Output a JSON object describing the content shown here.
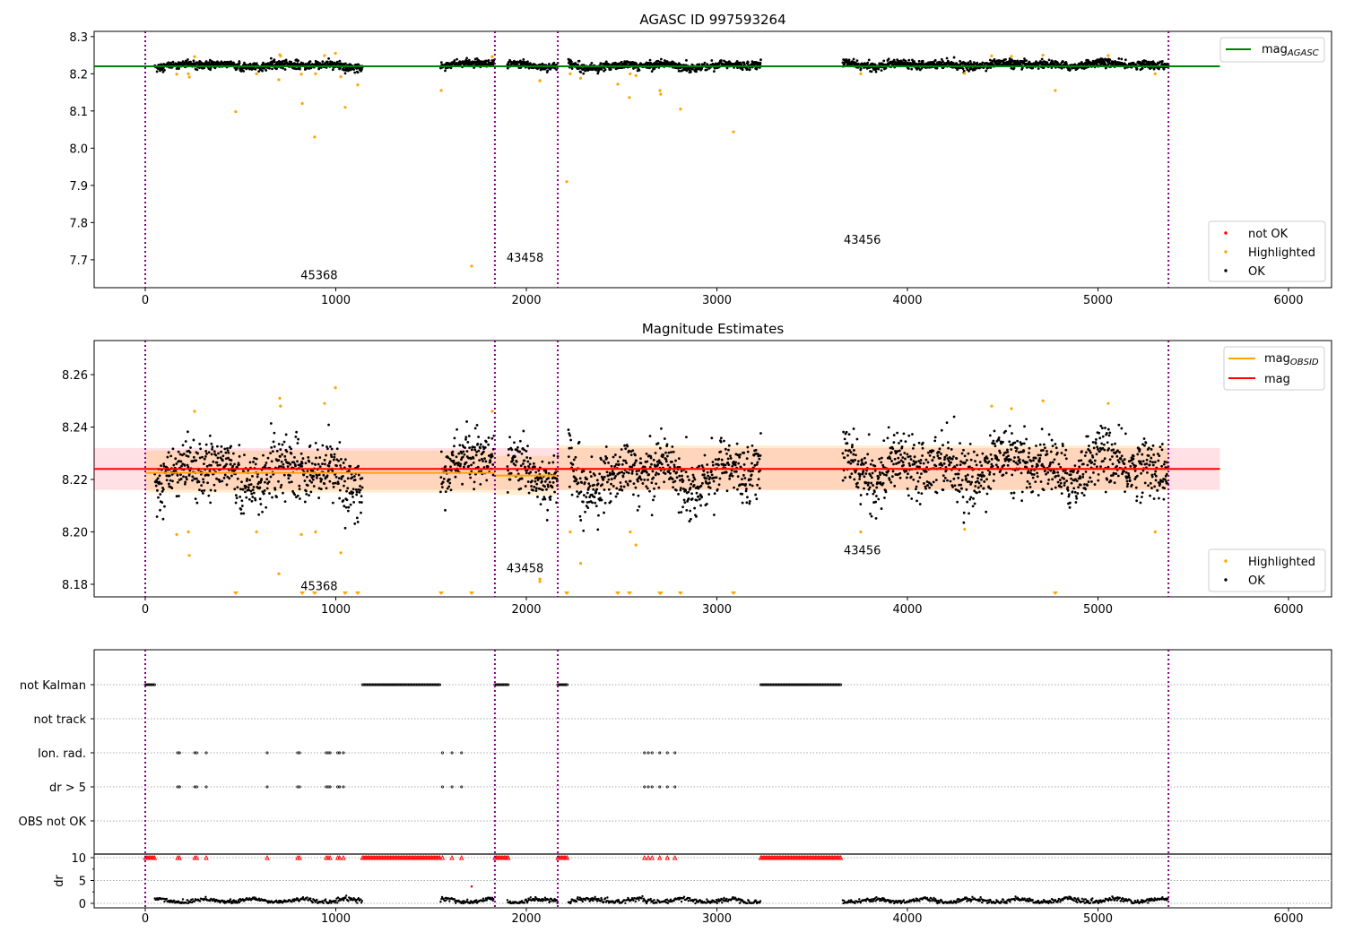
{
  "chart_data": [
    {
      "type": "scatter",
      "title": "AGASC ID 997593264",
      "xlim": [
        -268,
        6226
      ],
      "ylim": [
        7.625,
        8.314
      ],
      "xticks": [
        0,
        1000,
        2000,
        3000,
        4000,
        5000,
        6000
      ],
      "yticks": [
        7.7,
        7.8,
        7.9,
        8.0,
        8.1,
        8.2,
        8.3
      ],
      "mag_agasc": 8.22,
      "mag_agasc_xrange": [
        -268,
        5640
      ],
      "legend": {
        "top": "mag_AGASC",
        "bottom": [
          "not OK",
          "Highlighted",
          "OK"
        ]
      },
      "annotations": [
        {
          "text": "45368",
          "x": 815,
          "y": 7.66
        },
        {
          "text": "43458",
          "x": 1896,
          "y": 7.707
        },
        {
          "text": "43456",
          "x": 3666,
          "y": 7.755
        }
      ]
    },
    {
      "type": "scatter",
      "title": "Magnitude Estimates",
      "xlim": [
        -268,
        6226
      ],
      "ylim": [
        8.1752,
        8.273
      ],
      "xticks": [
        0,
        1000,
        2000,
        3000,
        4000,
        5000,
        6000
      ],
      "yticks": [
        8.18,
        8.2,
        8.22,
        8.24,
        8.26
      ],
      "mag": 8.224,
      "mag_band": [
        8.216,
        8.232
      ],
      "mag_xrange": [
        -268,
        5640
      ],
      "mag_obsid": [
        {
          "x": [
            0,
            1835
          ],
          "mag": 8.2225,
          "band": [
            8.215,
            8.231
          ]
        },
        {
          "x": [
            1835,
            2165
          ],
          "mag": 8.2215,
          "band": [
            8.214,
            8.229
          ]
        },
        {
          "x": [
            2165,
            5370
          ],
          "mag": 8.224,
          "band": [
            8.216,
            8.233
          ]
        }
      ],
      "legend": {
        "top": [
          "mag_OBSID",
          "mag"
        ],
        "bottom": [
          "Highlighted",
          "OK"
        ]
      },
      "annotations": [
        {
          "text": "45368",
          "x": 815,
          "y": 8.1795
        },
        {
          "text": "43458",
          "x": 1896,
          "y": 8.1863
        },
        {
          "text": "43456",
          "x": 3666,
          "y": 8.1932
        }
      ]
    },
    {
      "type": "scatter",
      "categories": [
        "not Kalman",
        "not track",
        "Ion. rad.",
        "dr > 5",
        "OBS not OK"
      ],
      "ylabel_dr": "dr",
      "dr_ticks": [
        0,
        5,
        10
      ],
      "xticks": [
        0,
        1000,
        2000,
        3000,
        4000,
        5000,
        6000
      ]
    }
  ],
  "obsid_boundaries": [
    0,
    1835,
    2165,
    5370
  ],
  "ok_segments": [
    {
      "x": [
        50,
        1140
      ],
      "mean": 8.2225,
      "wobble": 0.006,
      "noise": 0.0055
    },
    {
      "x": [
        1550,
        1830
      ],
      "mean": 8.226,
      "wobble": 0.005,
      "noise": 0.005
    },
    {
      "x": [
        1900,
        2165
      ],
      "mean": 8.221,
      "wobble": 0.006,
      "noise": 0.005
    },
    {
      "x": [
        2220,
        3230
      ],
      "mean": 8.222,
      "wobble": 0.007,
      "noise": 0.0055
    },
    {
      "x": [
        3660,
        5370
      ],
      "mean": 8.225,
      "wobble": 0.006,
      "noise": 0.0055
    }
  ],
  "not_kalman_ranges": [
    [
      0,
      50
    ],
    [
      1140,
      1550
    ],
    [
      1835,
      1910
    ],
    [
      2165,
      2220
    ],
    [
      3230,
      3650
    ]
  ],
  "ion_rad_x": [
    170,
    180,
    260,
    270,
    320,
    640,
    800,
    810,
    950,
    960,
    970,
    1010,
    1020,
    1040,
    1560,
    1610,
    1660,
    2620,
    2640,
    2660,
    2700,
    2740,
    2780
  ],
  "dr_outlier": {
    "x": 1713,
    "dr": 3.7
  },
  "highlighted": [
    {
      "x": 475,
      "y": 8.098
    },
    {
      "x": 824,
      "y": 8.12
    },
    {
      "x": 889,
      "y": 8.03
    },
    {
      "x": 1049,
      "y": 8.11
    },
    {
      "x": 1115,
      "y": 8.17
    },
    {
      "x": 1553,
      "y": 8.155
    },
    {
      "x": 1713,
      "y": 7.683
    },
    {
      "x": 2071,
      "y": 8.182
    },
    {
      "x": 2212,
      "y": 7.91
    },
    {
      "x": 2480,
      "y": 8.172
    },
    {
      "x": 2541,
      "y": 8.136
    },
    {
      "x": 2701,
      "y": 8.155
    },
    {
      "x": 2705,
      "y": 8.145
    },
    {
      "x": 2809,
      "y": 8.105
    },
    {
      "x": 3087,
      "y": 8.044
    },
    {
      "x": 4776,
      "y": 8.155
    },
    {
      "x": 165,
      "y": 8.199
    },
    {
      "x": 226,
      "y": 8.2
    },
    {
      "x": 231,
      "y": 8.191
    },
    {
      "x": 584,
      "y": 8.2
    },
    {
      "x": 701,
      "y": 8.184
    },
    {
      "x": 819,
      "y": 8.199
    },
    {
      "x": 894,
      "y": 8.2
    },
    {
      "x": 1026,
      "y": 8.192
    },
    {
      "x": 2071,
      "y": 8.181
    },
    {
      "x": 2230,
      "y": 8.2
    },
    {
      "x": 2285,
      "y": 8.188
    },
    {
      "x": 2545,
      "y": 8.2
    },
    {
      "x": 2575,
      "y": 8.195
    },
    {
      "x": 3755,
      "y": 8.2
    },
    {
      "x": 4300,
      "y": 8.201
    },
    {
      "x": 5300,
      "y": 8.2
    },
    {
      "x": 706,
      "y": 8.251
    },
    {
      "x": 710,
      "y": 8.248
    },
    {
      "x": 941,
      "y": 8.249
    },
    {
      "x": 998,
      "y": 8.255
    },
    {
      "x": 1821,
      "y": 8.246
    },
    {
      "x": 4711,
      "y": 8.25
    },
    {
      "x": 5054,
      "y": 8.249
    },
    {
      "x": 4442,
      "y": 8.248
    },
    {
      "x": 4546,
      "y": 8.247
    },
    {
      "x": 259,
      "y": 8.246
    }
  ],
  "colors": {
    "ok": "#000000",
    "highlighted": "#ffa500",
    "not_ok": "#ff0000",
    "agasc": "#008000",
    "mag": "#ff0000",
    "obsid": "#ffa500",
    "boundary": "#800080"
  }
}
